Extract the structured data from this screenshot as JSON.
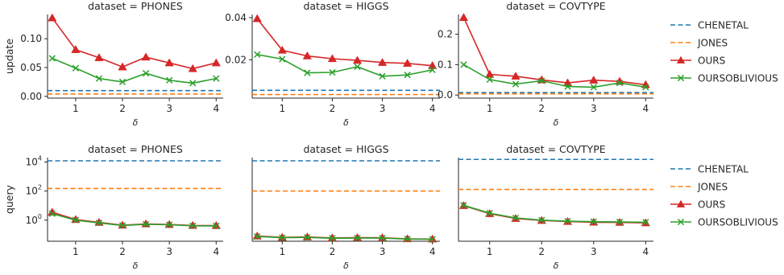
{
  "colors": {
    "CHENETAL": "#1f77b4",
    "JONES": "#ff7f0e",
    "OURS": "#d62728",
    "OURSOBLIVIOUS": "#2ca02c",
    "axis": "#262626",
    "text": "#262626"
  },
  "legends": [
    {
      "position": "right of top row",
      "entries": [
        {
          "name": "CHENETAL",
          "style": "dashed"
        },
        {
          "name": "JONES",
          "style": "dashed"
        },
        {
          "name": "OURS",
          "style": "line-triangle"
        },
        {
          "name": "OURSOBLIVIOUS",
          "style": "line-x"
        }
      ]
    },
    {
      "position": "right of bottom row",
      "entries": [
        {
          "name": "CHENETAL",
          "style": "dashed"
        },
        {
          "name": "JONES",
          "style": "dashed"
        },
        {
          "name": "OURS",
          "style": "line-triangle"
        },
        {
          "name": "OURSOBLIVIOUS",
          "style": "line-x"
        }
      ]
    }
  ],
  "chart_data": [
    {
      "type": "line",
      "title": "dataset = PHONES",
      "xlabel": "δ",
      "ylabel": "update",
      "xlim": [
        0.4,
        4.15
      ],
      "ylim": [
        -0.003,
        0.142
      ],
      "scale": "linear",
      "xticks": [
        1,
        2,
        3,
        4
      ],
      "yticks": [
        {
          "v": 0.0,
          "label": "0.00"
        },
        {
          "v": 0.05,
          "label": "0.05"
        },
        {
          "v": 0.1,
          "label": "0.10"
        }
      ],
      "series": [
        {
          "name": "CHENETAL",
          "kind": "hline",
          "y": 0.01
        },
        {
          "name": "JONES",
          "kind": "hline",
          "y": 0.004
        },
        {
          "name": "OURS",
          "kind": "line",
          "x": [
            0.5,
            1.0,
            1.5,
            2.0,
            2.5,
            3.0,
            3.5,
            4.0
          ],
          "y": [
            0.136,
            0.081,
            0.067,
            0.051,
            0.068,
            0.058,
            0.048,
            0.058
          ]
        },
        {
          "name": "OURSOBLIVIOUS",
          "kind": "line",
          "x": [
            0.5,
            1.0,
            1.5,
            2.0,
            2.5,
            3.0,
            3.5,
            4.0
          ],
          "y": [
            0.066,
            0.049,
            0.031,
            0.025,
            0.04,
            0.028,
            0.023,
            0.031
          ]
        }
      ]
    },
    {
      "type": "line",
      "title": "dataset = HIGGS",
      "xlabel": "δ",
      "ylabel": "",
      "xlim": [
        0.4,
        4.15
      ],
      "ylim": [
        0.0018,
        0.0415
      ],
      "scale": "linear",
      "xticks": [
        1,
        2,
        3,
        4
      ],
      "yticks": [
        {
          "v": 0.02,
          "label": "0.02"
        },
        {
          "v": 0.04,
          "label": "0.04"
        }
      ],
      "series": [
        {
          "name": "CHENETAL",
          "kind": "hline",
          "y": 0.0055
        },
        {
          "name": "JONES",
          "kind": "hline",
          "y": 0.0035
        },
        {
          "name": "OURS",
          "kind": "line",
          "x": [
            0.5,
            1.0,
            1.5,
            2.0,
            2.5,
            3.0,
            3.5,
            4.0
          ],
          "y": [
            0.0395,
            0.0245,
            0.0218,
            0.0205,
            0.0197,
            0.0187,
            0.0183,
            0.0172
          ]
        },
        {
          "name": "OURSOBLIVIOUS",
          "kind": "line",
          "x": [
            0.5,
            1.0,
            1.5,
            2.0,
            2.5,
            3.0,
            3.5,
            4.0
          ],
          "y": [
            0.0225,
            0.0203,
            0.0138,
            0.014,
            0.0167,
            0.0122,
            0.0128,
            0.0152
          ]
        }
      ]
    },
    {
      "type": "line",
      "title": "dataset = COVTYPE",
      "xlabel": "δ",
      "ylabel": "",
      "xlim": [
        0.4,
        4.15
      ],
      "ylim": [
        -0.01,
        0.265
      ],
      "scale": "linear",
      "xticks": [
        1,
        2,
        3,
        4
      ],
      "yticks": [
        {
          "v": 0.0,
          "label": "0.0"
        },
        {
          "v": 0.1,
          "label": "0.1"
        },
        {
          "v": 0.2,
          "label": "0.2"
        }
      ],
      "series": [
        {
          "name": "CHENETAL",
          "kind": "hline",
          "y": 0.008
        },
        {
          "name": "JONES",
          "kind": "hline",
          "y": 0.004
        },
        {
          "name": "OURS",
          "kind": "line",
          "x": [
            0.5,
            1.0,
            1.5,
            2.0,
            2.5,
            3.0,
            3.5,
            4.0
          ],
          "y": [
            0.255,
            0.068,
            0.062,
            0.05,
            0.04,
            0.049,
            0.045,
            0.034
          ]
        },
        {
          "name": "OURSOBLIVIOUS",
          "kind": "line",
          "x": [
            0.5,
            1.0,
            1.5,
            2.0,
            2.5,
            3.0,
            3.5,
            4.0
          ],
          "y": [
            0.1,
            0.051,
            0.036,
            0.047,
            0.028,
            0.026,
            0.04,
            0.026
          ]
        }
      ]
    },
    {
      "type": "line",
      "title": "dataset = PHONES",
      "xlabel": "δ",
      "ylabel": "query",
      "xlim": [
        0.4,
        4.15
      ],
      "ylim": [
        -1.45,
        4.3
      ],
      "scale": "log10",
      "xticks": [
        1,
        2,
        3,
        4
      ],
      "yticks": [
        {
          "v": 0,
          "label": "10^0"
        },
        {
          "v": 2,
          "label": "10^2"
        },
        {
          "v": 4,
          "label": "10^4"
        }
      ],
      "series": [
        {
          "name": "CHENETAL",
          "kind": "hline",
          "y": 12000
        },
        {
          "name": "JONES",
          "kind": "hline",
          "y": 150
        },
        {
          "name": "OURS",
          "kind": "line",
          "x": [
            0.5,
            1.0,
            1.5,
            2.0,
            2.5,
            3.0,
            3.5,
            4.0
          ],
          "y": [
            3.5,
            1.1,
            0.7,
            0.45,
            0.55,
            0.5,
            0.43,
            0.42
          ]
        },
        {
          "name": "OURSOBLIVIOUS",
          "kind": "line",
          "x": [
            0.5,
            1.0,
            1.5,
            2.0,
            2.5,
            3.0,
            3.5,
            4.0
          ],
          "y": [
            2.8,
            1.0,
            0.65,
            0.43,
            0.52,
            0.48,
            0.41,
            0.4
          ]
        }
      ]
    },
    {
      "type": "line",
      "title": "dataset = HIGGS",
      "xlabel": "δ",
      "ylabel": "",
      "xlim": [
        0.4,
        4.15
      ],
      "ylim": [
        -1.45,
        4.3
      ],
      "scale": "log10",
      "xticks": [
        1,
        2,
        3,
        4
      ],
      "yticks": [],
      "series": [
        {
          "name": "CHENETAL",
          "kind": "hline",
          "y": 12000
        },
        {
          "name": "JONES",
          "kind": "hline",
          "y": 100
        },
        {
          "name": "OURS",
          "kind": "line",
          "x": [
            0.5,
            1.0,
            1.5,
            2.0,
            2.5,
            3.0,
            3.5,
            4.0
          ],
          "y": [
            0.08,
            0.065,
            0.07,
            0.06,
            0.062,
            0.061,
            0.052,
            0.05
          ]
        },
        {
          "name": "OURSOBLIVIOUS",
          "kind": "line",
          "x": [
            0.5,
            1.0,
            1.5,
            2.0,
            2.5,
            3.0,
            3.5,
            4.0
          ],
          "y": [
            0.075,
            0.062,
            0.065,
            0.057,
            0.058,
            0.058,
            0.05,
            0.048
          ]
        }
      ]
    },
    {
      "type": "line",
      "title": "dataset = COVTYPE",
      "xlabel": "δ",
      "ylabel": "",
      "xlim": [
        0.4,
        4.15
      ],
      "ylim": [
        -1.45,
        4.3
      ],
      "scale": "log10",
      "xticks": [
        1,
        2,
        3,
        4
      ],
      "yticks": [],
      "series": [
        {
          "name": "CHENETAL",
          "kind": "hline",
          "y": 15000
        },
        {
          "name": "JONES",
          "kind": "hline",
          "y": 130
        },
        {
          "name": "OURS",
          "kind": "line",
          "x": [
            0.5,
            1.0,
            1.5,
            2.0,
            2.5,
            3.0,
            3.5,
            4.0
          ],
          "y": [
            10,
            2.8,
            1.3,
            0.95,
            0.8,
            0.72,
            0.7,
            0.65
          ]
        },
        {
          "name": "OURSOBLIVIOUS",
          "kind": "line",
          "x": [
            0.5,
            1.0,
            1.5,
            2.0,
            2.5,
            3.0,
            3.5,
            4.0
          ],
          "y": [
            10.5,
            3.0,
            1.4,
            1.0,
            0.85,
            0.78,
            0.75,
            0.72
          ]
        }
      ]
    }
  ]
}
